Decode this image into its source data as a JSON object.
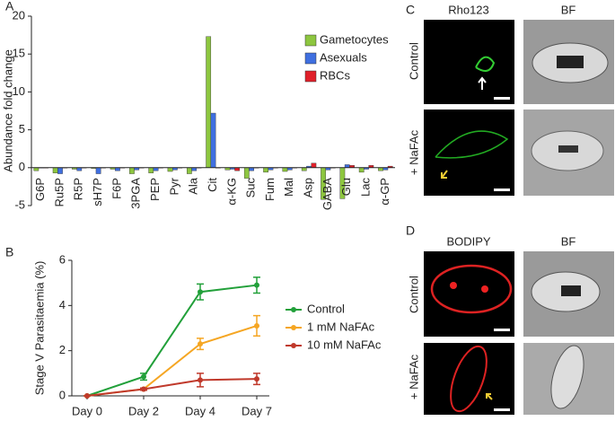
{
  "chart_data": [
    {
      "type": "bar",
      "panel_label": "A",
      "y_label": "Abundance fold change",
      "categories": [
        "G6P",
        "Ru5P",
        "R5P",
        "sH7P",
        "F6P",
        "3PGA",
        "PEP",
        "Pyr",
        "Ala",
        "Cit",
        "α-KG",
        "Suc",
        "Fum",
        "Mal",
        "Asp",
        "GABA",
        "Glu",
        "Lac",
        "α-GP"
      ],
      "series": [
        {
          "name": "Gametocytes",
          "color": "#8dc63f",
          "values": [
            -0.4,
            -0.7,
            -0.2,
            -0.1,
            -0.2,
            -0.8,
            -0.7,
            -0.5,
            -0.8,
            17.3,
            -0.3,
            -1.4,
            -0.6,
            -0.5,
            -0.4,
            -4.2,
            -4.1,
            -0.6,
            -0.4
          ]
        },
        {
          "name": "Asexuals",
          "color": "#3f6fe0",
          "values": [
            0,
            -0.8,
            -0.4,
            -0.8,
            -0.4,
            -0.3,
            -0.4,
            -0.3,
            -0.4,
            7.2,
            -0.2,
            -0.4,
            -0.3,
            -0.3,
            0.2,
            -0.3,
            0.4,
            -0.2,
            -0.3
          ]
        },
        {
          "name": "RBCs",
          "color": "#e0202a",
          "values": [
            0,
            0,
            0,
            0,
            0,
            0,
            0,
            0,
            0,
            0,
            -0.4,
            0,
            0,
            0,
            0.6,
            0,
            0.3,
            0.3,
            0.2
          ]
        }
      ],
      "ylim": [
        -5,
        20
      ],
      "yticks": [
        -5,
        0,
        5,
        10,
        15,
        20
      ],
      "legend": "upper right"
    },
    {
      "type": "line",
      "panel_label": "B",
      "y_label": "Stage V Parasitaemia (%)",
      "categories": [
        "Day 0",
        "Day 2",
        "Day 4",
        "Day 7"
      ],
      "series": [
        {
          "name": "Control",
          "color": "#22a03a",
          "values": [
            0,
            0.85,
            4.6,
            4.9
          ],
          "errors": [
            0,
            0.15,
            0.35,
            0.35
          ]
        },
        {
          "name": "1 mM NaFAc",
          "color": "#f5a623",
          "values": [
            0,
            0.3,
            2.3,
            3.1
          ],
          "errors": [
            0,
            0.05,
            0.25,
            0.45
          ]
        },
        {
          "name": "10 mM NaFAc",
          "color": "#c0392b",
          "values": [
            0,
            0.3,
            0.7,
            0.75
          ],
          "errors": [
            0,
            0.05,
            0.3,
            0.25
          ]
        }
      ],
      "ylim": [
        0,
        6
      ],
      "yticks": [
        0,
        2,
        4,
        6
      ],
      "legend": "right"
    }
  ],
  "panel_c": {
    "label": "C",
    "columns": [
      "Rho123",
      "BF"
    ],
    "rows": [
      "Control",
      "+ NaFAc"
    ]
  },
  "panel_d": {
    "label": "D",
    "columns": [
      "BODIPY",
      "BF"
    ],
    "rows": [
      "Control",
      "+ NaFAc"
    ]
  }
}
